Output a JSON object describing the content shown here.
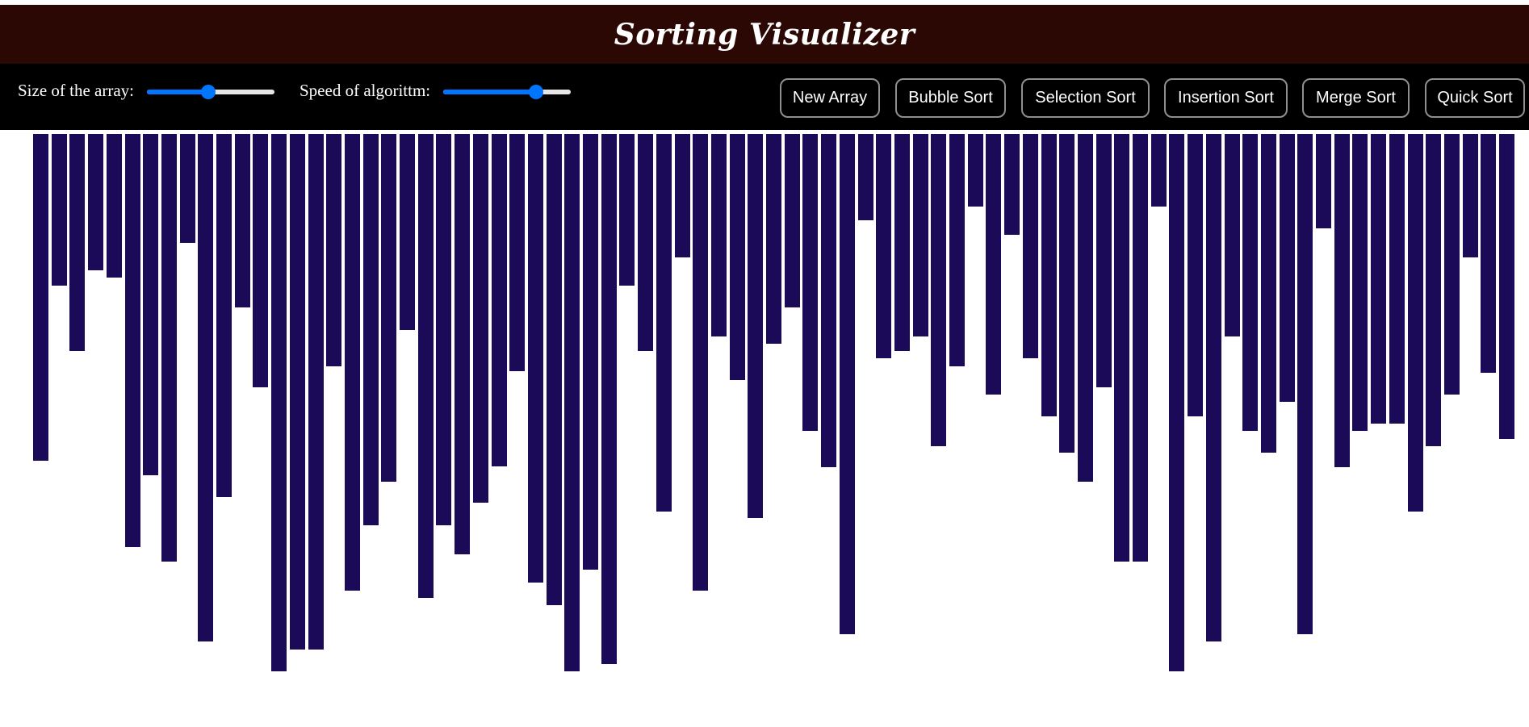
{
  "header": {
    "title": "Sorting Visualizer"
  },
  "controls": {
    "size_label": "Size of the array:",
    "size_value_fraction": 0.48,
    "speed_label": "Speed of algorittm:",
    "speed_value_fraction": 0.73
  },
  "buttons": {
    "new_array": "New Array",
    "bubble_sort": "Bubble Sort",
    "selection_sort": "Selection Sort",
    "insertion_sort": "Insertion Sort",
    "merge_sort": "Merge Sort",
    "quick_sort": "Quick Sort"
  },
  "colors": {
    "title_bg": "#2c0804",
    "controls_bg": "#000000",
    "bar": "#1b0a57",
    "slider_accent": "#0075ff"
  },
  "array": {
    "values": [
      405,
      188,
      269,
      169,
      178,
      512,
      423,
      530,
      135,
      629,
      450,
      215,
      314,
      666,
      639,
      639,
      288,
      566,
      485,
      431,
      243,
      575,
      485,
      521,
      457,
      412,
      294,
      556,
      584,
      666,
      540,
      657,
      188,
      269,
      468,
      153,
      566,
      251,
      305,
      476,
      260,
      215,
      368,
      413,
      620,
      107,
      278,
      269,
      251,
      387,
      288,
      90,
      323,
      125,
      278,
      350,
      395,
      431,
      314,
      530,
      530,
      90,
      666,
      350,
      629,
      251,
      368,
      395,
      332,
      620,
      117,
      413,
      368,
      359,
      359,
      468,
      387,
      323,
      153,
      296,
      378
    ]
  }
}
